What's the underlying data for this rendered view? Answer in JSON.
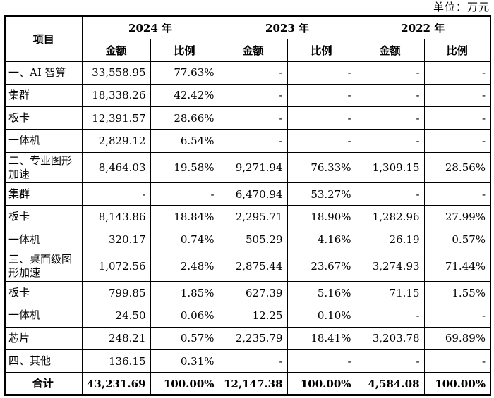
{
  "unit_label": "单位：万元",
  "header": {
    "item_label": "项目",
    "years": [
      "2024 年",
      "2023 年",
      "2022 年"
    ],
    "sub": [
      "金额",
      "比例"
    ]
  },
  "rows": [
    {
      "label": "一、AI 智算",
      "cells": [
        "33,558.95",
        "77.63%",
        "-",
        "-",
        "-",
        "-"
      ]
    },
    {
      "label": "集群",
      "cells": [
        "18,338.26",
        "42.42%",
        "-",
        "-",
        "-",
        "-"
      ]
    },
    {
      "label": "板卡",
      "cells": [
        "12,391.57",
        "28.66%",
        "-",
        "-",
        "-",
        "-"
      ]
    },
    {
      "label": "一体机",
      "cells": [
        "2,829.12",
        "6.54%",
        "-",
        "-",
        "-",
        "-"
      ]
    },
    {
      "label": "二、专业图形加速",
      "cells": [
        "8,464.03",
        "19.58%",
        "9,271.94",
        "76.33%",
        "1,309.15",
        "28.56%"
      ]
    },
    {
      "label": "集群",
      "cells": [
        "-",
        "-",
        "6,470.94",
        "53.27%",
        "-",
        "-"
      ]
    },
    {
      "label": "板卡",
      "cells": [
        "8,143.86",
        "18.84%",
        "2,295.71",
        "18.90%",
        "1,282.96",
        "27.99%"
      ]
    },
    {
      "label": "一体机",
      "cells": [
        "320.17",
        "0.74%",
        "505.29",
        "4.16%",
        "26.19",
        "0.57%"
      ]
    },
    {
      "label": "三、桌面级图形加速",
      "cells": [
        "1,072.56",
        "2.48%",
        "2,875.44",
        "23.67%",
        "3,274.93",
        "71.44%"
      ]
    },
    {
      "label": "板卡",
      "cells": [
        "799.85",
        "1.85%",
        "627.39",
        "5.16%",
        "71.15",
        "1.55%"
      ]
    },
    {
      "label": "一体机",
      "cells": [
        "24.50",
        "0.06%",
        "12.25",
        "0.10%",
        "-",
        "-"
      ]
    },
    {
      "label": "芯片",
      "cells": [
        "248.21",
        "0.57%",
        "2,235.79",
        "18.41%",
        "3,203.78",
        "69.89%"
      ]
    },
    {
      "label": "四、其他",
      "cells": [
        "136.15",
        "0.31%",
        "-",
        "-",
        "-",
        "-"
      ]
    },
    {
      "label": "合计",
      "cells": [
        "43,231.69",
        "100.00%",
        "12,147.38",
        "100.00%",
        "4,584.08",
        "100.00%"
      ]
    }
  ]
}
